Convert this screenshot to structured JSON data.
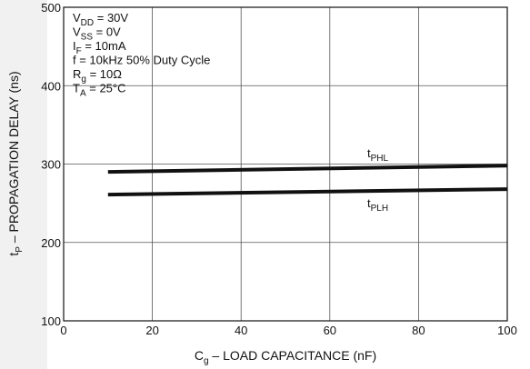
{
  "chart_data": {
    "type": "line",
    "xlabel": "– LOAD CAPACITANCE (nF)",
    "xlabel_symbol": "C",
    "xlabel_sub": "g",
    "ylabel": "– PROPAGATION DELAY (ns)",
    "ylabel_symbol": "t",
    "ylabel_sub": "P",
    "xlim": [
      0,
      100
    ],
    "ylim": [
      100,
      500
    ],
    "xticks": [
      "0",
      "20",
      "40",
      "60",
      "80",
      "100"
    ],
    "yticks": [
      "100",
      "200",
      "300",
      "400",
      "500"
    ],
    "grid": true,
    "series": [
      {
        "name": "tPHL",
        "label_main": "t",
        "label_sub": "PHL",
        "x": [
          10,
          100
        ],
        "y": [
          290,
          298
        ],
        "color": "#111111"
      },
      {
        "name": "tPLH",
        "label_main": "t",
        "label_sub": "PLH",
        "x": [
          10,
          100
        ],
        "y": [
          261,
          268
        ],
        "color": "#111111"
      }
    ],
    "conditions": [
      {
        "main": "V",
        "sub": "DD",
        "rest": " = 30V"
      },
      {
        "main": "V",
        "sub": "SS",
        "rest": " = 0V"
      },
      {
        "main": "I",
        "sub": "F",
        "rest": " = 10mA"
      },
      {
        "main": "f = 10kHz 50% Duty Cycle",
        "sub": "",
        "rest": ""
      },
      {
        "main": "R",
        "sub": "g",
        "rest": " = 10Ω"
      },
      {
        "main": "T",
        "sub": "A",
        "rest": " = 25°C"
      }
    ]
  }
}
